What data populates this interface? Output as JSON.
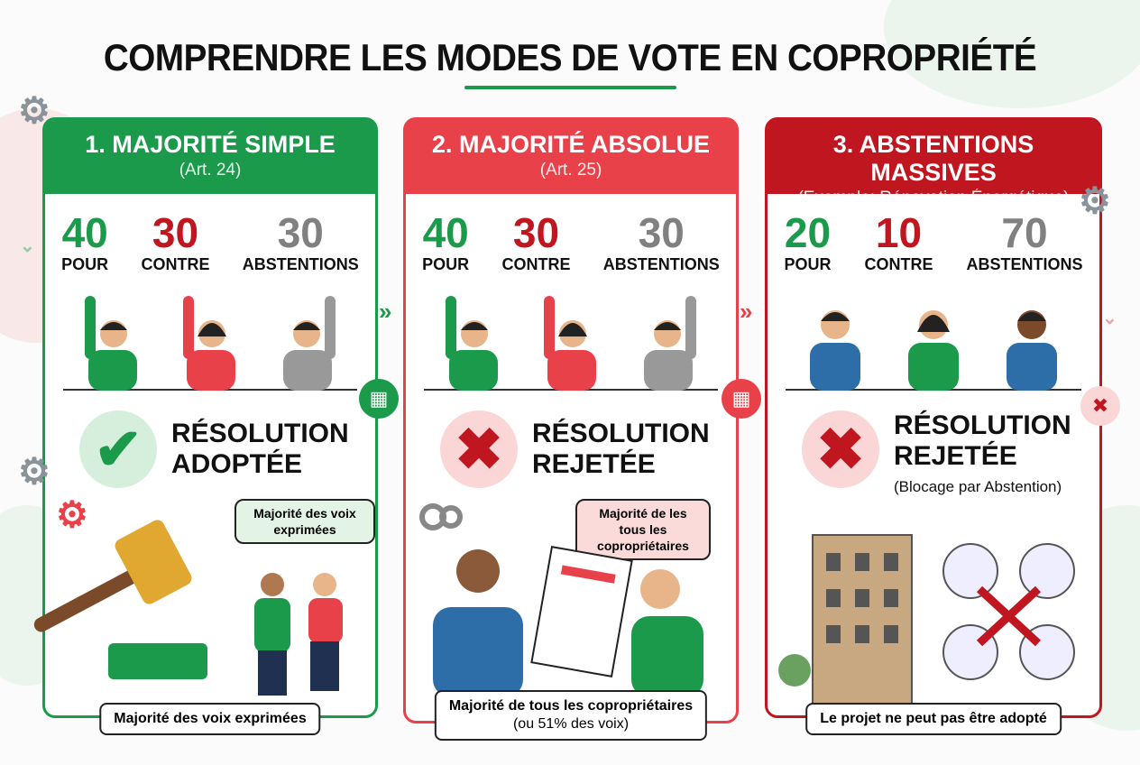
{
  "title": "COMPRENDRE LES MODES DE VOTE EN COPROPRIÉTÉ",
  "colors": {
    "green": "#1a9a4a",
    "red": "#e8414a",
    "dark_red": "#c0161f",
    "gray": "#808080"
  },
  "panels": [
    {
      "title": "1. MAJORITÉ SIMPLE",
      "subtitle": "(Art. 24)",
      "votes": [
        {
          "value": "40",
          "label": "POUR"
        },
        {
          "value": "30",
          "label": "CONTRE"
        },
        {
          "value": "30",
          "label": "ABSTENTIONS"
        }
      ],
      "result_icon": "check-icon",
      "result": "RÉSOLUTION ADOPTÉE",
      "bubble": "Majorité des voix exprimées",
      "caption": "Majorité des voix exprimées"
    },
    {
      "title": "2. MAJORITÉ ABSOLUE",
      "subtitle": "(Art. 25)",
      "votes": [
        {
          "value": "40",
          "label": "POUR"
        },
        {
          "value": "30",
          "label": "CONTRE"
        },
        {
          "value": "30",
          "label": "ABSTENTIONS"
        }
      ],
      "result_icon": "cross-icon",
      "result": "RÉSOLUTION REJETÉE",
      "bubble": "Majorité de les tous les copropriétaires",
      "caption_line1": "Majorité de tous les copropriétaires",
      "caption_line2": "(ou 51% des voix)"
    },
    {
      "title": "3. ABSTENTIONS MASSIVES",
      "subtitle": "(Exemple: Rénovation Énergétique)",
      "votes": [
        {
          "value": "20",
          "label": "POUR"
        },
        {
          "value": "10",
          "label": "CONTRE"
        },
        {
          "value": "70",
          "label": "ABSTENTIONS"
        }
      ],
      "result_icon": "cross-icon",
      "result": "RÉSOLUTION REJETÉE",
      "result_sub": "(Blocage par Abstention)",
      "caption": "Le projet ne peut pas être adopté"
    }
  ]
}
